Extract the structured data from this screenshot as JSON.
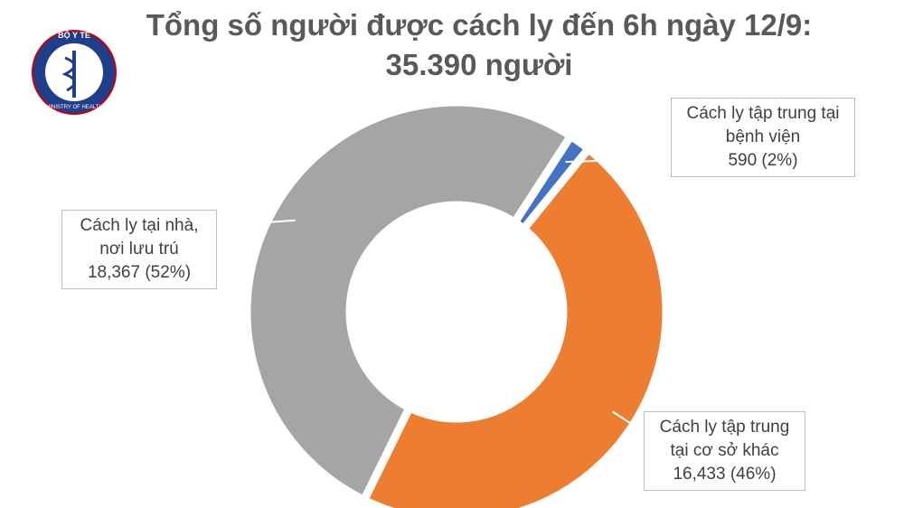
{
  "logo": {
    "top_text": "BỘ Y TẾ",
    "bottom_text": "MINISTRY OF HEALTH"
  },
  "chart_data": {
    "type": "pie",
    "donut": true,
    "title": "Tổng số người được cách ly đến 6h ngày 12/9: 35.390 người",
    "categories": [
      "Cách ly tập trung tại bệnh viện",
      "Cách ly tập trung tại cơ sở khác",
      "Cách ly tại nhà, nơi lưu trú"
    ],
    "values": [
      590,
      16433,
      18367
    ],
    "value_labels": [
      "590 (2%)",
      "16,433 (46%)",
      "18,367 (52%)"
    ],
    "colors": [
      "#4472c4",
      "#ed7d31",
      "#a5a5a5"
    ]
  }
}
